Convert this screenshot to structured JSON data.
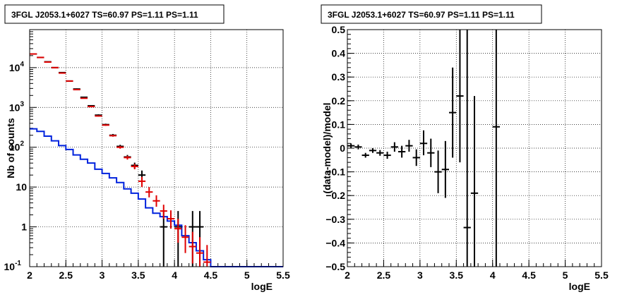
{
  "colors": {
    "data_black": "#000000",
    "model_red": "#e00000",
    "background_blue": "#0022dd",
    "grid": "#000000"
  },
  "chart_data": [
    {
      "type": "line",
      "title": "3FGL J2053.1+6027 TS=60.97 PS=1.11 PS=1.11",
      "xlabel": "logE",
      "ylabel": "Nb of counts",
      "xlim": [
        2,
        5.5
      ],
      "ylim": [
        0.1,
        90000
      ],
      "y_scale": "log",
      "grid": true,
      "x_ticks": [
        "2",
        "2.5",
        "3",
        "3.5",
        "4",
        "4.5",
        "5",
        "5.5"
      ],
      "y_ticks": [
        {
          "value": 0.1,
          "label": "10",
          "exp": "-1"
        },
        {
          "value": 1,
          "label": "1",
          "exp": ""
        },
        {
          "value": 10,
          "label": "10",
          "exp": ""
        },
        {
          "value": 100,
          "label": "10",
          "exp": "2"
        },
        {
          "value": 1000,
          "label": "10",
          "exp": "3"
        },
        {
          "value": 10000,
          "label": "10",
          "exp": "4"
        }
      ],
      "series": [
        {
          "kind": "histogram",
          "color": "#0022dd",
          "edges": [
            2.0,
            2.1,
            2.2,
            2.3,
            2.4,
            2.5,
            2.6,
            2.7,
            2.8,
            2.9,
            3.0,
            3.1,
            3.2,
            3.3,
            3.4,
            3.5,
            3.6,
            3.7,
            3.8,
            3.9,
            4.0,
            4.1,
            4.2,
            4.3,
            4.4,
            4.5,
            5.5
          ],
          "values": [
            290,
            250,
            190,
            145,
            110,
            88,
            64,
            50,
            40,
            28,
            22,
            17,
            13,
            9,
            7,
            5,
            3,
            2.2,
            1.8,
            1.4,
            1.1,
            0.6,
            0.4,
            0.25,
            0.15,
            0.1
          ]
        },
        {
          "kind": "errorbars",
          "color": "#000000",
          "x": [
            2.05,
            2.15,
            2.25,
            2.35,
            2.45,
            2.55,
            2.65,
            2.75,
            2.85,
            2.95,
            3.05,
            3.15,
            3.25,
            3.35,
            3.45,
            3.55,
            3.85,
            4.05,
            4.25,
            4.35
          ],
          "y": [
            22000,
            18000,
            14000,
            10000,
            7500,
            4600,
            2900,
            1800,
            1100,
            640,
            370,
            200,
            105,
            57,
            35,
            20,
            1.0,
            1.0,
            1.0,
            1.0
          ],
          "ylo": [
            21500,
            17600,
            13700,
            9800,
            7300,
            4500,
            2800,
            1750,
            1060,
            610,
            350,
            185,
            95,
            50,
            29,
            15,
            0.1,
            0.1,
            0.1,
            0.1
          ],
          "yhi": [
            22500,
            18400,
            14300,
            10200,
            7700,
            4700,
            3000,
            1850,
            1140,
            670,
            390,
            215,
            115,
            64,
            41,
            26,
            2.5,
            2.5,
            2.5,
            2.5
          ]
        },
        {
          "kind": "errorbars",
          "color": "#e00000",
          "x": [
            2.05,
            2.15,
            2.25,
            2.35,
            2.45,
            2.55,
            2.65,
            2.75,
            2.85,
            2.95,
            3.05,
            3.15,
            3.25,
            3.35,
            3.45,
            3.55,
            3.65,
            3.75,
            3.85,
            3.95,
            4.05,
            4.15,
            4.25,
            4.35,
            4.45
          ],
          "y": [
            22000,
            18000,
            13800,
            10000,
            7300,
            4600,
            2800,
            1700,
            1050,
            610,
            360,
            195,
            100,
            55,
            33,
            14,
            7.5,
            4.5,
            2.5,
            1.6,
            0.9,
            0.55,
            0.32,
            0.22,
            0.13
          ],
          "ylo": [
            21500,
            17600,
            13500,
            9800,
            7100,
            4500,
            2700,
            1650,
            1010,
            590,
            345,
            185,
            92,
            49,
            28,
            10,
            5.5,
            3.2,
            1.6,
            0.9,
            0.4,
            0.22,
            0.12,
            0.1,
            0.1
          ],
          "yhi": [
            22500,
            18400,
            14100,
            10200,
            7500,
            4700,
            2900,
            1750,
            1090,
            630,
            375,
            205,
            108,
            61,
            38,
            18,
            10,
            6.2,
            3.6,
            2.6,
            1.6,
            1.1,
            0.75,
            0.55,
            0.35
          ]
        }
      ]
    },
    {
      "type": "scatter",
      "title": "3FGL J2053.1+6027 TS=60.97 PS=1.11 PS=1.11",
      "xlabel": "logE",
      "ylabel": "(data-model)/model",
      "xlim": [
        2,
        5.5
      ],
      "ylim": [
        -0.5,
        0.5
      ],
      "grid": true,
      "x_ticks": [
        "2",
        "2.5",
        "3",
        "3.5",
        "4",
        "4.5",
        "5",
        "5.5"
      ],
      "y_ticks": [
        "−0.5",
        "−0.4",
        "−0.3",
        "−0.2",
        "−0.1",
        "0",
        "0.1",
        "0.2",
        "0.3",
        "0.4",
        "0.5"
      ],
      "series": [
        {
          "kind": "errorbars",
          "color": "#000000",
          "x": [
            2.05,
            2.15,
            2.25,
            2.35,
            2.45,
            2.55,
            2.65,
            2.75,
            2.85,
            2.95,
            3.05,
            3.15,
            3.25,
            3.35,
            3.45,
            3.55,
            3.65,
            3.75,
            4.05
          ],
          "y": [
            0.01,
            0.005,
            -0.03,
            -0.01,
            -0.02,
            -0.03,
            0.005,
            -0.015,
            0.01,
            -0.04,
            0.02,
            -0.02,
            -0.1,
            -0.09,
            0.15,
            0.22,
            -0.335,
            -0.19,
            0.09
          ],
          "ylo": [
            0.0,
            -0.005,
            -0.04,
            -0.02,
            -0.032,
            -0.045,
            -0.015,
            -0.04,
            -0.015,
            -0.075,
            -0.03,
            -0.08,
            -0.19,
            -0.21,
            -0.04,
            -0.06,
            -0.5,
            -0.5,
            -0.5
          ],
          "yhi": [
            0.02,
            0.015,
            -0.02,
            0.0,
            -0.008,
            -0.015,
            0.025,
            0.01,
            0.035,
            -0.005,
            0.075,
            0.04,
            -0.01,
            0.03,
            0.34,
            0.5,
            0.5,
            0.22,
            0.5
          ]
        }
      ]
    }
  ]
}
